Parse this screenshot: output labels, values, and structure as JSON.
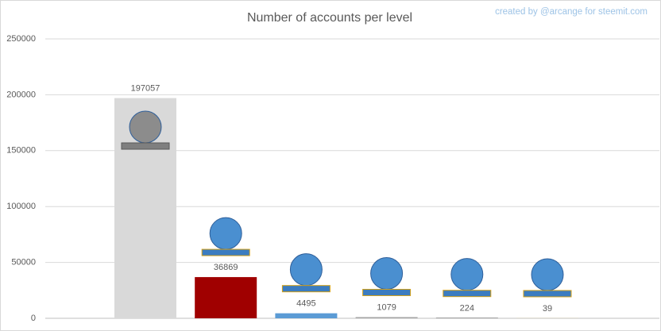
{
  "chart_data": {
    "type": "bar",
    "title": "Number of accounts per level",
    "watermark": "created by @arcange for steemit.com",
    "categories": [
      null,
      null,
      null,
      null,
      null,
      null
    ],
    "values": [
      197057,
      36869,
      4495,
      1079,
      224,
      39
    ],
    "colors": [
      "#d9d9d9",
      "#a00000",
      "#5b9bd5",
      "#a5a5a5",
      "#000000",
      "#ffc000"
    ],
    "ylim": [
      0,
      250000
    ],
    "yticks": [
      0,
      50000,
      100000,
      150000,
      200000,
      250000
    ],
    "grid": true,
    "data_labels": true
  }
}
